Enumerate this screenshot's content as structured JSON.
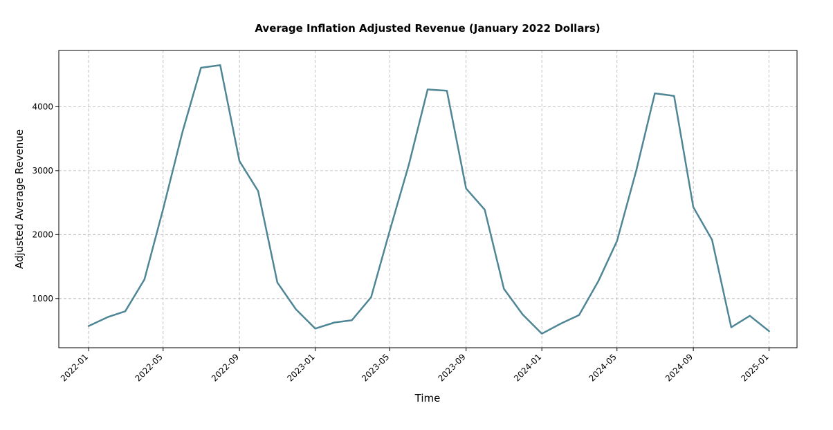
{
  "chart_data": {
    "type": "line",
    "title": "Average Inflation Adjusted Revenue (January 2022 Dollars)",
    "xlabel": "Time",
    "ylabel": "Adjusted Average Revenue",
    "x_ticks": [
      "2022-01",
      "2022-05",
      "2022-09",
      "2023-01",
      "2023-05",
      "2023-09",
      "2024-01",
      "2024-05",
      "2024-09",
      "2025-01"
    ],
    "y_ticks": [
      1000,
      2000,
      3000,
      4000
    ],
    "ylim": [
      230,
      4880
    ],
    "xlim": [
      "2021-11-14",
      "2025-02-15"
    ],
    "grid": true,
    "colors": {
      "line": "#4e8696"
    },
    "x": [
      "2022-01",
      "2022-02",
      "2022-03",
      "2022-04",
      "2022-05",
      "2022-06",
      "2022-07",
      "2022-08",
      "2022-09",
      "2022-10",
      "2022-11",
      "2022-12",
      "2023-01",
      "2023-02",
      "2023-03",
      "2023-04",
      "2023-05",
      "2023-06",
      "2023-07",
      "2023-08",
      "2023-09",
      "2023-10",
      "2023-11",
      "2023-12",
      "2024-01",
      "2024-02",
      "2024-03",
      "2024-04",
      "2024-05",
      "2024-06",
      "2024-07",
      "2024-08",
      "2024-09",
      "2024-10",
      "2024-11",
      "2024-12",
      "2025-01"
    ],
    "values": [
      570,
      710,
      800,
      1300,
      2400,
      3600,
      4610,
      4650,
      3150,
      2680,
      1250,
      830,
      530,
      625,
      660,
      1020,
      2060,
      3100,
      4270,
      4250,
      2720,
      2390,
      1150,
      750,
      450,
      610,
      740,
      1270,
      1900,
      3000,
      4210,
      4170,
      2430,
      1920,
      550,
      730,
      490
    ]
  }
}
